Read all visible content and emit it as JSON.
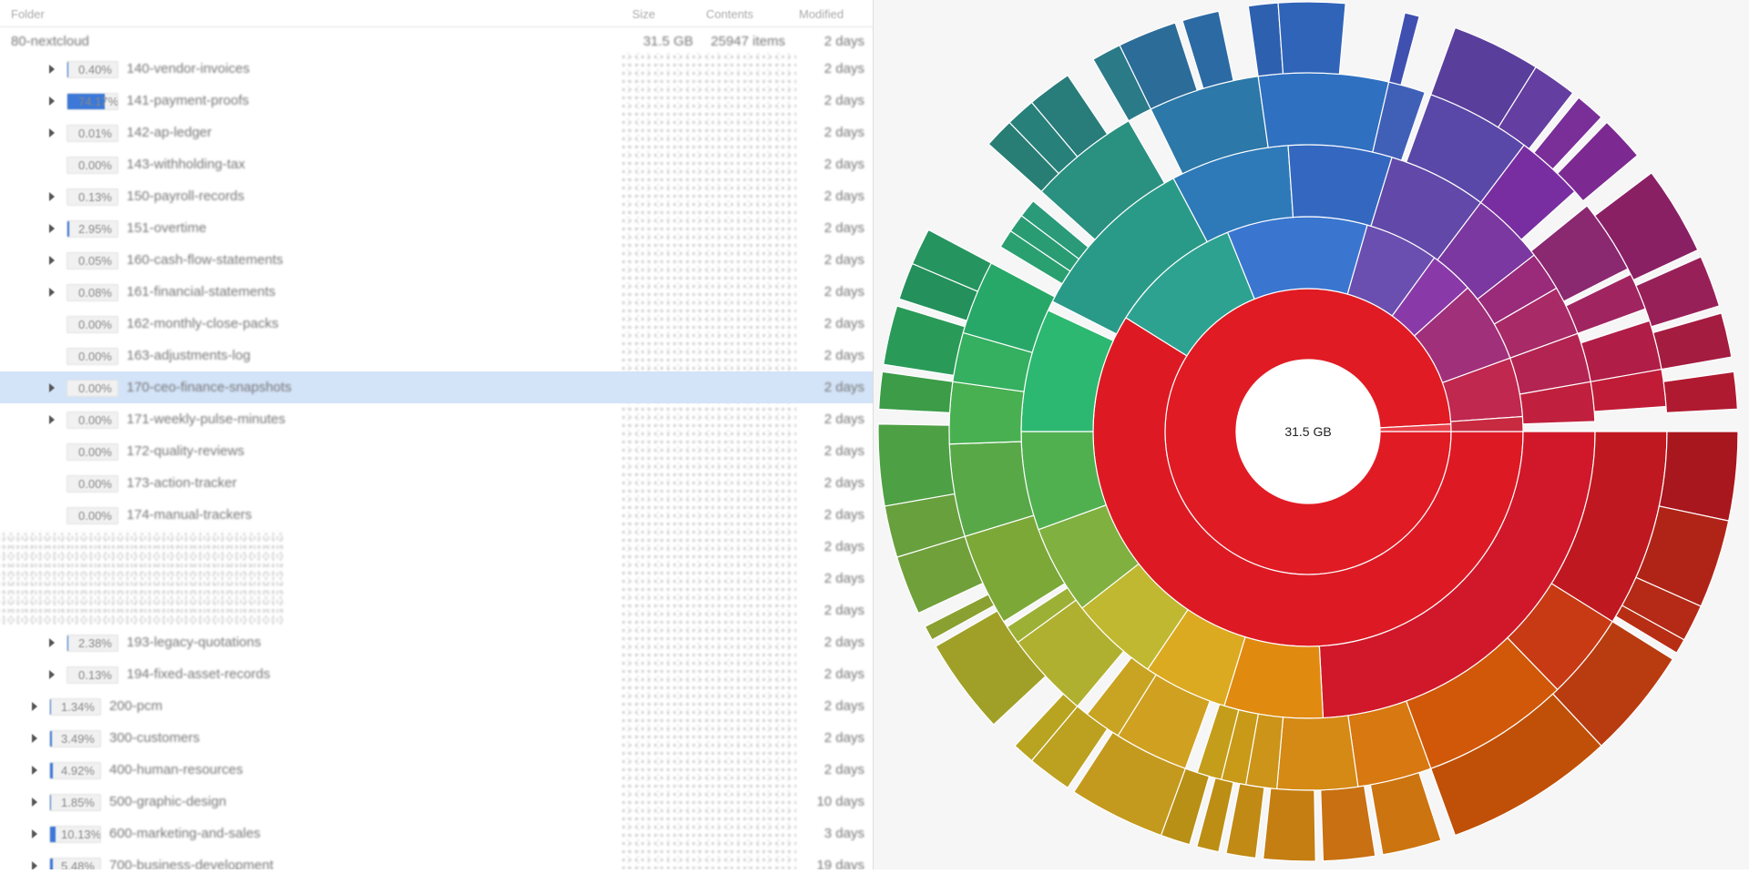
{
  "header": {
    "folder": "Folder",
    "size": "Size",
    "contents": "Contents",
    "modified": "Modified"
  },
  "root": {
    "name": "80-nextcloud",
    "size": "31.5 GB",
    "contents": "25947 items",
    "modified": "2 days"
  },
  "rows": [
    {
      "name": "140-vendor-invoices",
      "percent": 0.4,
      "percent_label": "0.40%",
      "modified": "2 days",
      "level": 2,
      "expandable": true
    },
    {
      "name": "141-payment-proofs",
      "percent": 74.17,
      "percent_label": "74.17%",
      "modified": "2 days",
      "level": 2,
      "expandable": true
    },
    {
      "name": "142-ap-ledger",
      "percent": 0.01,
      "percent_label": "0.01%",
      "modified": "2 days",
      "level": 2,
      "expandable": true
    },
    {
      "name": "143-withholding-tax",
      "percent": 0.0,
      "percent_label": "0.00%",
      "modified": "2 days",
      "level": 2,
      "expandable": false
    },
    {
      "name": "150-payroll-records",
      "percent": 0.13,
      "percent_label": "0.13%",
      "modified": "2 days",
      "level": 2,
      "expandable": true
    },
    {
      "name": "151-overtime",
      "percent": 2.95,
      "percent_label": "2.95%",
      "modified": "2 days",
      "level": 2,
      "expandable": true
    },
    {
      "name": "160-cash-flow-statements",
      "percent": 0.05,
      "percent_label": "0.05%",
      "modified": "2 days",
      "level": 2,
      "expandable": true
    },
    {
      "name": "161-financial-statements",
      "percent": 0.08,
      "percent_label": "0.08%",
      "modified": "2 days",
      "level": 2,
      "expandable": true
    },
    {
      "name": "162-monthly-close-packs",
      "percent": 0.0,
      "percent_label": "0.00%",
      "modified": "2 days",
      "level": 2,
      "expandable": false
    },
    {
      "name": "163-adjustments-log",
      "percent": 0.0,
      "percent_label": "0.00%",
      "modified": "2 days",
      "level": 2,
      "expandable": false
    },
    {
      "name": "170-ceo-finance-snapshots",
      "percent": 0.0,
      "percent_label": "0.00%",
      "modified": "2 days",
      "level": 2,
      "expandable": true,
      "selected": true
    },
    {
      "name": "171-weekly-pulse-minutes",
      "percent": 0.0,
      "percent_label": "0.00%",
      "modified": "2 days",
      "level": 2,
      "expandable": true
    },
    {
      "name": "172-quality-reviews",
      "percent": 0.0,
      "percent_label": "0.00%",
      "modified": "2 days",
      "level": 2,
      "expandable": false
    },
    {
      "name": "173-action-tracker",
      "percent": 0.0,
      "percent_label": "0.00%",
      "modified": "2 days",
      "level": 2,
      "expandable": false
    },
    {
      "name": "174-manual-trackers",
      "percent": 0.0,
      "percent_label": "0.00%",
      "modified": "2 days",
      "level": 2,
      "expandable": false
    },
    {
      "modified": "2 days",
      "level": 2
    },
    {
      "modified": "2 days",
      "level": 2
    },
    {
      "modified": "2 days",
      "level": 2
    },
    {
      "name": "193-legacy-quotations",
      "percent": 2.38,
      "percent_label": "2.38%",
      "modified": "2 days",
      "level": 2,
      "expandable": true
    },
    {
      "name": "194-fixed-asset-records",
      "percent": 0.13,
      "percent_label": "0.13%",
      "modified": "2 days",
      "level": 2,
      "expandable": true
    },
    {
      "name": "200-pcm",
      "percent": 1.34,
      "percent_label": "1.34%",
      "modified": "2 days",
      "level": 1,
      "expandable": true
    },
    {
      "name": "300-customers",
      "percent": 3.49,
      "percent_label": "3.49%",
      "modified": "2 days",
      "level": 1,
      "expandable": true
    },
    {
      "name": "400-human-resources",
      "percent": 4.92,
      "percent_label": "4.92%",
      "modified": "2 days",
      "level": 1,
      "expandable": true
    },
    {
      "name": "500-graphic-design",
      "percent": 1.85,
      "percent_label": "1.85%",
      "modified": "10 days",
      "level": 1,
      "expandable": true
    },
    {
      "name": "600-marketing-and-sales",
      "percent": 10.13,
      "percent_label": "10.13%",
      "modified": "3 days",
      "level": 1,
      "expandable": true
    },
    {
      "name": "700-business-development",
      "percent": 5.48,
      "percent_label": "5.48%",
      "modified": "19 days",
      "level": 1,
      "expandable": true
    }
  ]
}
